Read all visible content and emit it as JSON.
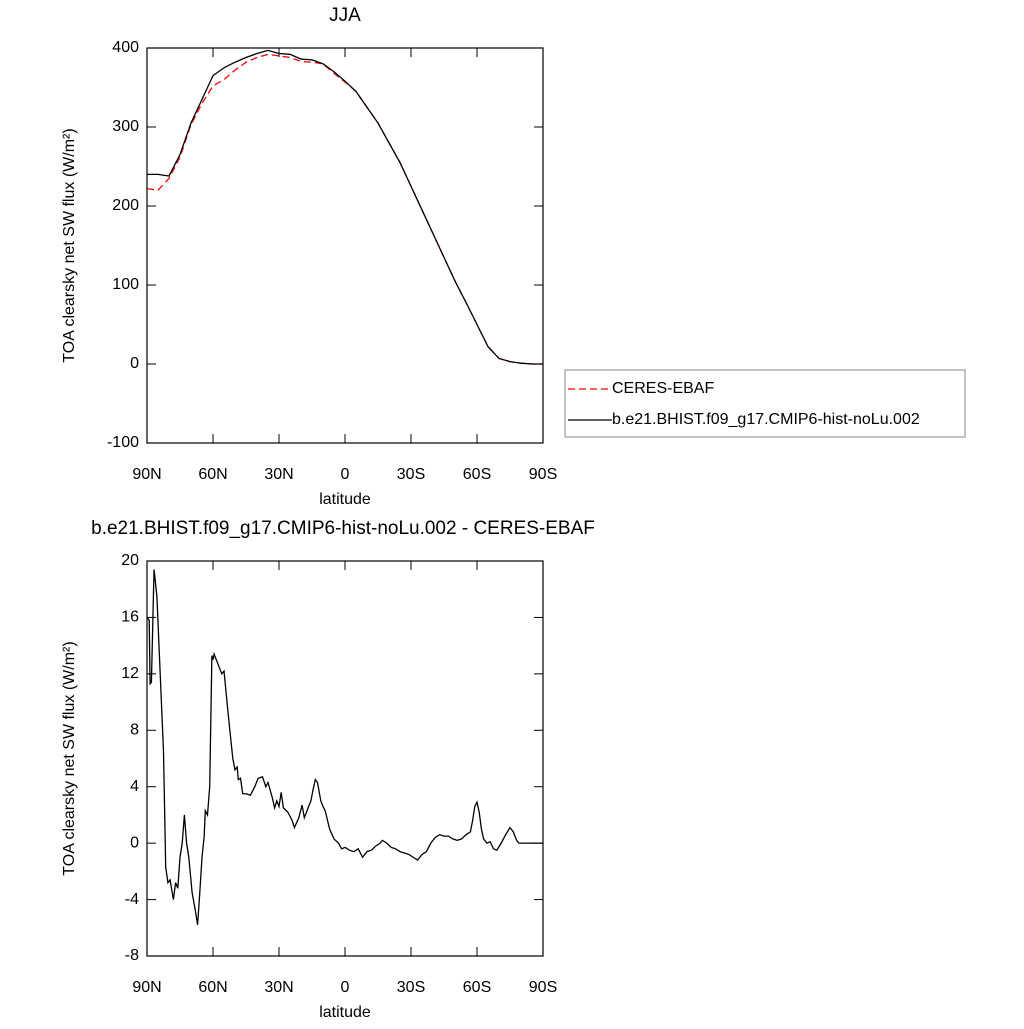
{
  "chart_data": [
    {
      "type": "line",
      "title": "JJA",
      "xlabel": "latitude",
      "ylabel": "TOA clearsky net SW flux (W/m²)",
      "x": [
        90,
        85,
        80,
        75,
        70,
        65,
        60,
        55,
        50,
        45,
        40,
        35,
        30,
        25,
        20,
        15,
        10,
        5,
        0,
        -5,
        -10,
        -15,
        -20,
        -25,
        -30,
        -35,
        -40,
        -45,
        -50,
        -55,
        -60,
        -65,
        -70,
        -75,
        -80,
        -85,
        -90
      ],
      "series": [
        {
          "name": "CERES-EBAF",
          "color": "#ff0000",
          "dashed": true,
          "values": [
            222,
            220,
            235,
            262,
            303,
            330,
            352,
            360,
            372,
            382,
            388,
            392,
            390,
            388,
            383,
            382,
            380,
            368,
            357,
            345,
            325,
            305,
            280,
            255,
            225,
            195,
            165,
            135,
            105,
            78,
            50,
            22,
            7,
            3,
            1,
            0,
            0
          ]
        },
        {
          "name": "b.e21.BHIST.f09_g17.CMIP6-hist-noLu.002",
          "color": "#000000",
          "dashed": false,
          "values": [
            240,
            240,
            238,
            265,
            305,
            335,
            365,
            375,
            382,
            388,
            393,
            397,
            393,
            392,
            386,
            385,
            380,
            370,
            358,
            345,
            325,
            305,
            280,
            255,
            225,
            195,
            165,
            135,
            105,
            78,
            50,
            22,
            7,
            3,
            1,
            0,
            0
          ]
        }
      ],
      "xlim": [
        90,
        -90
      ],
      "xticks": [
        {
          "value": 90,
          "label": "90N"
        },
        {
          "value": 60,
          "label": "60N"
        },
        {
          "value": 30,
          "label": "30N"
        },
        {
          "value": 0,
          "label": "0"
        },
        {
          "value": -30,
          "label": "30S"
        },
        {
          "value": -60,
          "label": "60S"
        },
        {
          "value": -90,
          "label": "90S"
        }
      ],
      "ylim": [
        -100,
        400
      ],
      "yticks": [
        -100,
        0,
        100,
        200,
        300,
        400
      ],
      "legend": "right"
    },
    {
      "type": "line",
      "title": "b.e21.BHIST.f09_g17.CMIP6-hist-noLu.002 - CERES-EBAF",
      "xlabel": "latitude",
      "ylabel": "TOA clearsky net SW flux (W/m²)",
      "x": [
        90,
        89,
        88.6,
        88,
        86.8,
        85.5,
        84,
        82.5,
        81.5,
        80.5,
        79.5,
        78,
        77,
        76,
        75,
        74,
        73,
        72,
        71,
        69.5,
        68,
        67,
        66,
        65,
        64,
        63.5,
        62.5,
        61.5,
        60.5,
        60,
        59.5,
        58,
        56,
        55,
        53,
        52,
        51,
        50,
        49,
        48.5,
        47.5,
        46.5,
        45,
        43,
        41,
        39.5,
        37.5,
        36,
        35,
        33,
        32,
        31,
        30,
        29,
        28,
        26,
        24,
        23,
        21,
        19.5,
        18.5,
        17,
        15.5,
        14.5,
        13.5,
        12.5,
        11,
        10,
        9,
        7,
        5,
        3,
        1.5,
        0,
        -2,
        -4,
        -6,
        -8,
        -10,
        -12,
        -14,
        -16,
        -17,
        -19,
        -21,
        -23,
        -25,
        -27,
        -29,
        -31,
        -33,
        -35,
        -37,
        -39,
        -41,
        -43,
        -45,
        -47,
        -49,
        -51,
        -53,
        -55,
        -57,
        -58,
        -59,
        -60,
        -61,
        -62,
        -63,
        -64.5,
        -66,
        -67.5,
        -69,
        -71,
        -73,
        -75,
        -76.5,
        -78,
        -79,
        -90
      ],
      "values": [
        16,
        15.8,
        11.3,
        11.4,
        19.4,
        17.5,
        12,
        6.5,
        -1.7,
        -2.8,
        -2.6,
        -4,
        -2.8,
        -3.2,
        -1,
        0,
        2,
        0,
        -1,
        -3.5,
        -4.8,
        -5.8,
        -3.5,
        -1,
        0.5,
        2.3,
        2,
        4,
        13.3,
        13,
        13.4,
        12.8,
        12,
        12.2,
        9,
        7.5,
        6,
        5.2,
        5.4,
        4.5,
        4.6,
        3.5,
        3.5,
        3.4,
        4,
        4.6,
        4.7,
        4,
        4.3,
        3.2,
        2.5,
        3,
        2.6,
        3.6,
        2.5,
        2.2,
        1.6,
        1.1,
        1.8,
        2.7,
        1.8,
        2.4,
        3,
        3.8,
        4.5,
        4.3,
        3,
        2.6,
        2.3,
        1,
        0.3,
        0,
        -0.4,
        -0.3,
        -0.5,
        -0.6,
        -0.4,
        -1,
        -0.6,
        -0.5,
        -0.2,
        0,
        0.2,
        0,
        -0.3,
        -0.4,
        -0.6,
        -0.7,
        -0.8,
        -1,
        -1.2,
        -0.8,
        -0.6,
        0,
        0.4,
        0.6,
        0.5,
        0.5,
        0.3,
        0.2,
        0.3,
        0.6,
        0.8,
        1.6,
        2.6,
        2.9,
        2.2,
        1,
        0.3,
        0,
        0.1,
        -0.4,
        -0.5,
        0,
        0.6,
        1.1,
        0.8,
        0.2,
        0,
        0
      ],
      "color": "#000000",
      "xlim": [
        90,
        -90
      ],
      "xticks": [
        {
          "value": 90,
          "label": "90N"
        },
        {
          "value": 60,
          "label": "60N"
        },
        {
          "value": 30,
          "label": "30N"
        },
        {
          "value": 0,
          "label": "0"
        },
        {
          "value": -30,
          "label": "30S"
        },
        {
          "value": -60,
          "label": "60S"
        },
        {
          "value": -90,
          "label": "90S"
        }
      ],
      "ylim": [
        -8,
        20
      ],
      "yticks": [
        -8,
        -4,
        0,
        4,
        8,
        12,
        16,
        20
      ]
    }
  ]
}
